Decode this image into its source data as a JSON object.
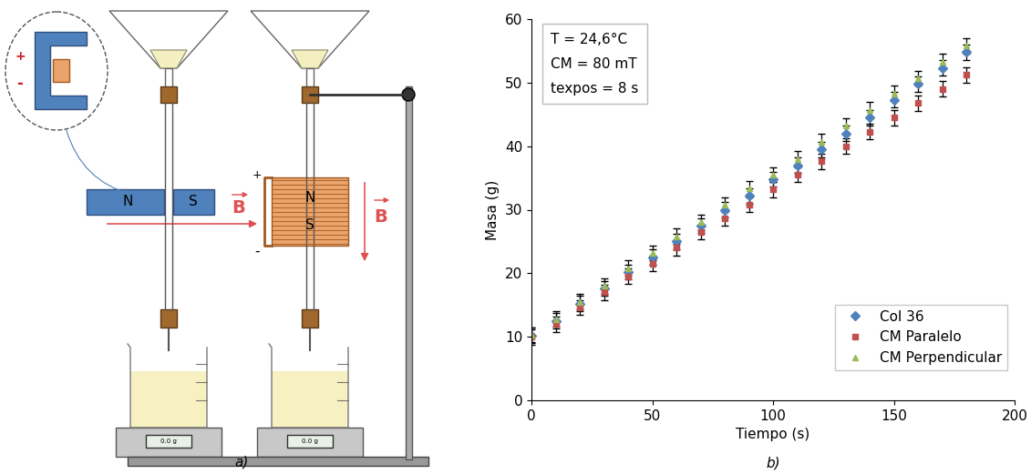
{
  "chart_data": {
    "type": "scatter",
    "x_label": "Tiempo (s)",
    "y_label": "Masa (g)",
    "annotations": [
      "T = 24,6°C",
      "CM = 80 mT",
      "texpos = 8 s"
    ],
    "x": [
      0,
      10,
      20,
      30,
      40,
      50,
      60,
      70,
      80,
      90,
      100,
      110,
      120,
      130,
      140,
      150,
      160,
      170,
      180
    ],
    "series": [
      {
        "name": "Col 36",
        "color": "#4f81bd",
        "marker": "diamond",
        "line_style": "none",
        "values": [
          10.2,
          12.5,
          15.2,
          17.6,
          20.2,
          22.5,
          25.0,
          27.5,
          30.0,
          32.2,
          34.8,
          37.0,
          39.5,
          42.0,
          44.5,
          47.3,
          49.8,
          52.3,
          54.8
        ],
        "errors": [
          1.2,
          1.2,
          1.2,
          1.2,
          1.2,
          1.2,
          1.2,
          1.2,
          1.2,
          1.2,
          1.2,
          1.2,
          1.2,
          1.2,
          1.2,
          1.2,
          1.2,
          1.2,
          1.2
        ]
      },
      {
        "name": "CM Paralelo",
        "color": "#c0504d",
        "marker": "square",
        "line_style": "none",
        "values": [
          10.0,
          12.0,
          14.6,
          17.0,
          19.5,
          21.5,
          24.0,
          26.5,
          28.7,
          30.8,
          33.2,
          35.5,
          37.6,
          40.0,
          42.3,
          44.5,
          46.8,
          49.0,
          51.2
        ],
        "errors": [
          1.2,
          1.2,
          1.2,
          1.2,
          1.2,
          1.2,
          1.2,
          1.2,
          1.2,
          1.2,
          1.2,
          1.2,
          1.2,
          1.2,
          1.2,
          1.2,
          1.2,
          1.2,
          1.2
        ]
      },
      {
        "name": "CM Perpendicular",
        "color": "#9bbb59",
        "marker": "triangle",
        "line_style": "none",
        "values": [
          10.3,
          12.8,
          15.5,
          18.0,
          20.8,
          23.2,
          25.8,
          28.0,
          30.8,
          33.3,
          35.5,
          38.0,
          40.7,
          43.2,
          45.7,
          48.3,
          50.7,
          53.3,
          55.8
        ],
        "errors": [
          1.2,
          1.2,
          1.2,
          1.2,
          1.2,
          1.2,
          1.2,
          1.2,
          1.2,
          1.2,
          1.2,
          1.2,
          1.2,
          1.2,
          1.2,
          1.2,
          1.2,
          1.2,
          1.2
        ]
      }
    ],
    "xlim": [
      0,
      200
    ],
    "xticks": [
      0,
      50,
      100,
      150,
      200
    ],
    "ylim": [
      0,
      60
    ],
    "yticks": [
      0,
      10,
      20,
      30,
      40,
      50,
      60
    ],
    "grid": false,
    "legend": "lower right"
  },
  "panel_labels": {
    "diagram": "a)",
    "chart": "b)"
  },
  "diagram": {
    "magnet_labels": [
      "N",
      "S"
    ],
    "field_label": "B",
    "polarity": [
      "+",
      "-"
    ],
    "scale_display": "0.0 g"
  }
}
